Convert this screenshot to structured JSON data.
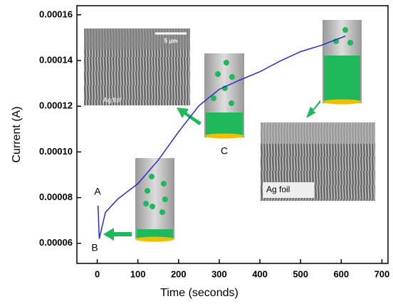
{
  "chart_data": {
    "type": "line",
    "x_label": "Time (seconds)",
    "y_label": "Current (A)",
    "x": [
      2,
      5,
      20,
      50,
      100,
      150,
      200,
      250,
      300,
      350,
      400,
      450,
      500,
      550,
      610
    ],
    "values": [
      7.65e-05,
      6.2e-05,
      7.35e-05,
      7.93e-05,
      8.61e-05,
      9.64e-05,
      0.0001088,
      0.0001202,
      0.0001274,
      0.0001314,
      0.0001351,
      0.0001398,
      0.0001439,
      0.0001466,
      0.0001507
    ],
    "color": "#2a2ad0",
    "xlim": [
      -50,
      715
    ],
    "xticks": [
      0,
      100,
      200,
      300,
      400,
      500,
      600,
      700
    ],
    "ylim": [
      5.12e-05,
      0.000164
    ],
    "yticks": [
      6e-05,
      8e-05,
      {
        "value": 0.0001,
        "label": "0.00010"
      },
      0.00012,
      0.00014,
      0.00016
    ],
    "annotations": [
      "A",
      "B",
      "C"
    ],
    "inset_labels": [
      "5 μm",
      "Ag foil",
      "Ag foil"
    ]
  }
}
